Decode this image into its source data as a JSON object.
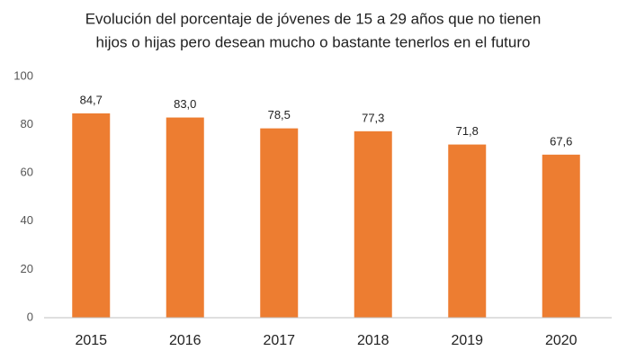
{
  "chart_data": {
    "type": "bar",
    "title": [
      "Evolución del porcentaje de jóvenes de 15 a 29 años que no tienen",
      "hijos o hijas pero desean mucho o bastante tenerlos en el futuro"
    ],
    "categories": [
      "2015",
      "2016",
      "2017",
      "2018",
      "2019",
      "2020"
    ],
    "values": [
      84.7,
      83.0,
      78.5,
      77.3,
      71.8,
      67.6
    ],
    "value_labels": [
      "84,7",
      "83,0",
      "78,5",
      "77,3",
      "71,8",
      "67,6"
    ],
    "color": "#ed7d31",
    "ylim": [
      0,
      100
    ],
    "yticks": [
      0,
      20,
      40,
      60,
      80,
      100
    ],
    "grid": false
  }
}
